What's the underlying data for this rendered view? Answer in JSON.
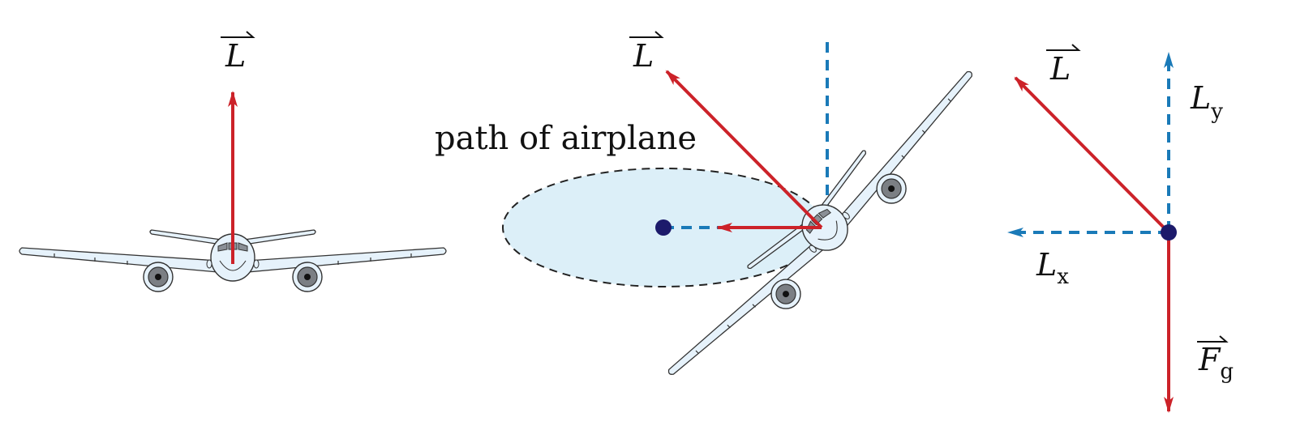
{
  "panels": {
    "front": {
      "lift_label": "L"
    },
    "banked": {
      "lift_label": "L",
      "path_label": "path of airplane"
    },
    "components": {
      "lift_label": "L",
      "ly_main": "L",
      "ly_sub": "y",
      "lx_main": "L",
      "lx_sub": "x",
      "fg_main": "F",
      "fg_sub": "g"
    }
  },
  "colors": {
    "force_arrow": "#cc2229",
    "component_arrow": "#1a7ab8",
    "center_dot": "#1c1a6b",
    "path_fill": "#dceff8",
    "airplane_fill": "#e6f2fb",
    "engine_gray": "#7b7f84"
  }
}
